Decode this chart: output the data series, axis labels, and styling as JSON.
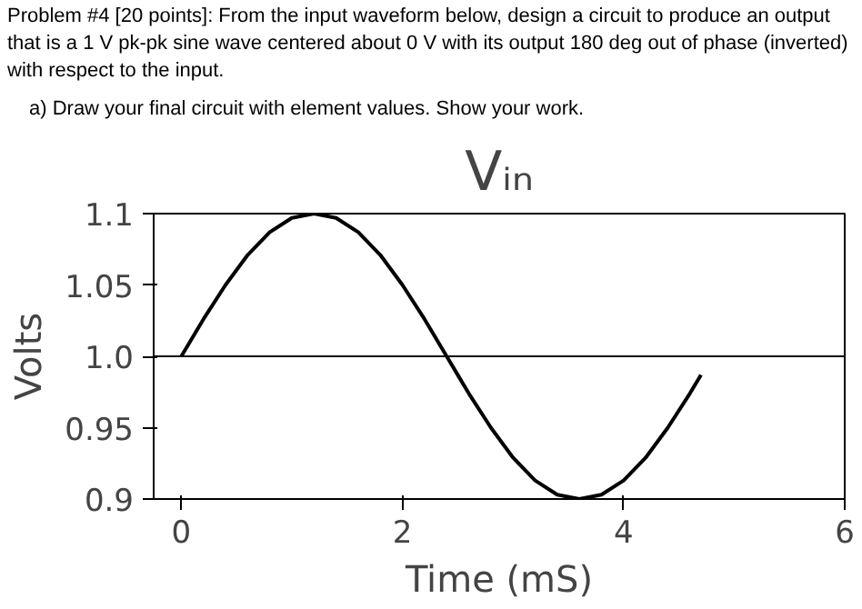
{
  "chart_data": {
    "type": "line",
    "title": "Vᵢₙ",
    "xlabel": "Time (mS)",
    "ylabel": "Volts",
    "annotations": [
      "Problem #4 [20 points]: From the input waveform below, design a circuit to produce an output that is a 1 V pk-pk sine wave centered about 0 V with its output 180 deg out of phase (inverted) with respect to the input.",
      "a) Draw your final circuit with element values.  Show your work."
    ],
    "x": [
      0,
      0.2,
      0.4,
      0.6,
      0.8,
      1.0,
      1.2,
      1.4,
      1.6,
      1.8,
      2.0,
      2.2,
      2.4,
      2.6,
      2.8,
      3.0,
      3.2,
      3.4,
      3.6,
      3.8,
      4.0,
      4.2,
      4.4,
      4.6,
      4.7
    ],
    "series": [
      {
        "color": "#000000",
        "values": [
          1.0,
          1.026,
          1.05,
          1.071,
          1.087,
          1.097,
          1.1,
          1.097,
          1.087,
          1.071,
          1.05,
          1.026,
          1.0,
          0.974,
          0.95,
          0.929,
          0.913,
          0.903,
          0.9,
          0.903,
          0.913,
          0.929,
          0.95,
          0.974,
          0.987
        ]
      }
    ],
    "xlim": [
      -0.25,
      6
    ],
    "xticks": [
      0,
      2,
      4,
      6
    ],
    "ylim": [
      0.9,
      1.1
    ],
    "yticks": [
      1.1,
      1.05,
      {
        "value": 1.0,
        "label": "1.0"
      },
      0.95,
      0.9
    ],
    "ref_lines": [
      {
        "axis": "y",
        "value": 1.0,
        "color": "#000000"
      }
    ],
    "grid": false,
    "marker": "none",
    "line_style": "solid"
  }
}
